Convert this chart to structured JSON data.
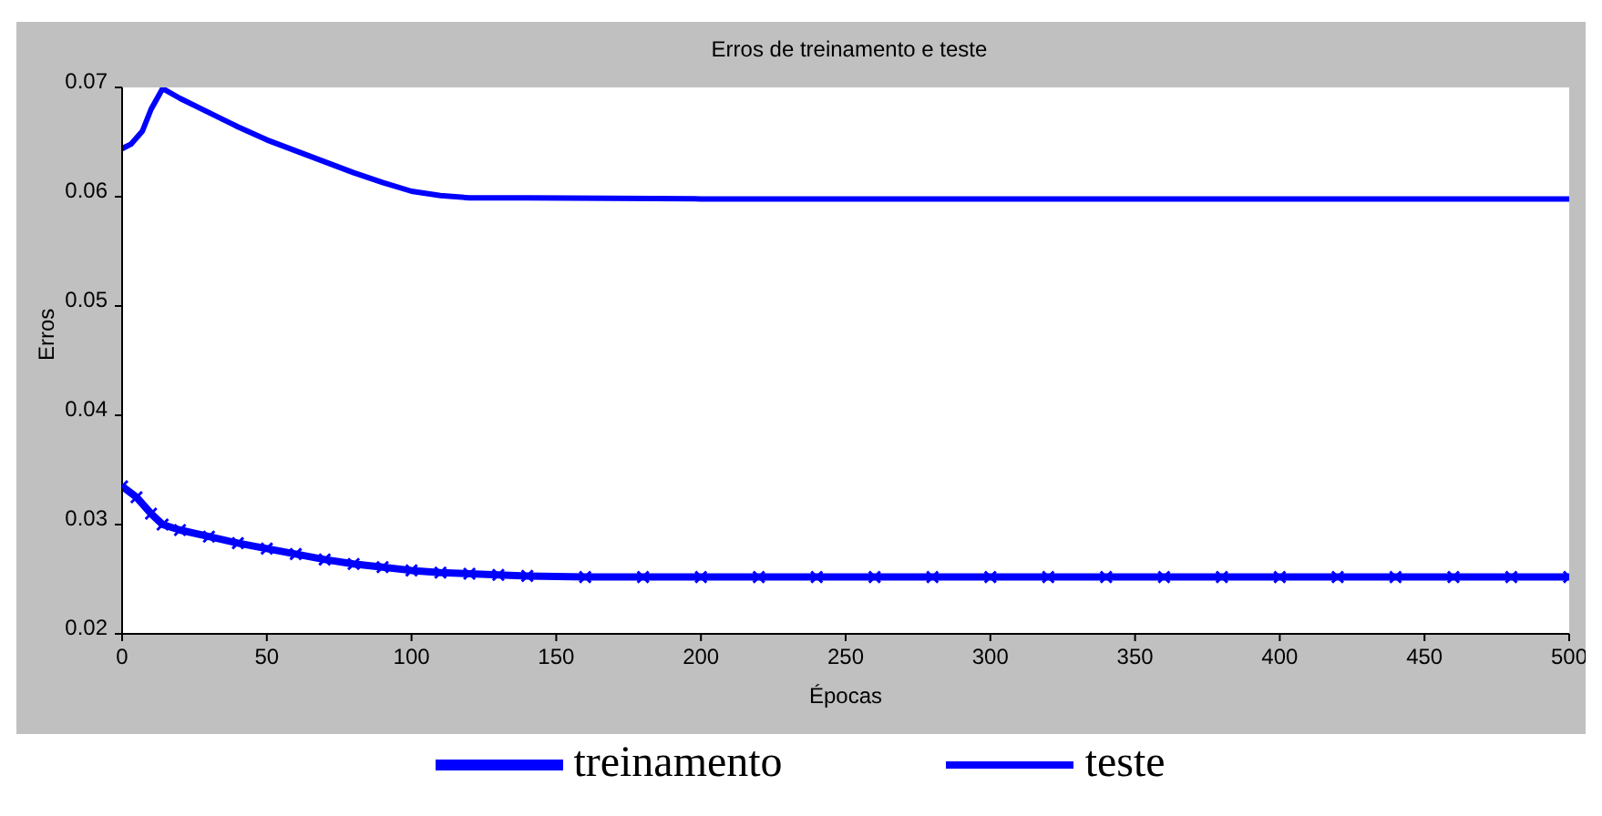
{
  "chart_data": {
    "type": "line",
    "title": "Erros de treinamento e teste",
    "xlabel": "Épocas",
    "ylabel": "Erros",
    "xlim": [
      0,
      500
    ],
    "xticks": [
      0,
      50,
      100,
      150,
      200,
      250,
      300,
      350,
      400,
      450,
      500
    ],
    "ylim": [
      0.02,
      0.07
    ],
    "yticks": [
      0.02,
      0.03,
      0.04,
      0.05,
      0.06,
      0.07
    ],
    "legend": "bottom",
    "grid": false,
    "series": [
      {
        "name": "treinamento",
        "color": "#0000ff",
        "marker": "cross",
        "x": [
          0,
          5,
          10,
          14,
          20,
          30,
          40,
          50,
          60,
          70,
          80,
          90,
          100,
          110,
          120,
          130,
          140,
          160,
          180,
          200,
          220,
          240,
          260,
          280,
          300,
          320,
          340,
          360,
          380,
          400,
          420,
          440,
          460,
          480,
          500
        ],
        "values": [
          0.0335,
          0.0325,
          0.031,
          0.03,
          0.0295,
          0.0289,
          0.0283,
          0.0278,
          0.0273,
          0.0268,
          0.0264,
          0.0261,
          0.0258,
          0.0256,
          0.0255,
          0.0254,
          0.0253,
          0.0252,
          0.0252,
          0.0252,
          0.0252,
          0.0252,
          0.0252,
          0.0252,
          0.0252,
          0.0252,
          0.0252,
          0.0252,
          0.0252,
          0.0252,
          0.0252,
          0.0252,
          0.0252,
          0.0252,
          0.0252
        ]
      },
      {
        "name": "teste",
        "color": "#0000ff",
        "marker": "none",
        "x": [
          0,
          3,
          7,
          10,
          14,
          20,
          30,
          40,
          50,
          60,
          70,
          80,
          90,
          100,
          110,
          120,
          140,
          200,
          500
        ],
        "values": [
          0.0644,
          0.0648,
          0.066,
          0.068,
          0.0699,
          0.069,
          0.0677,
          0.0664,
          0.0652,
          0.0642,
          0.0632,
          0.0622,
          0.0613,
          0.0605,
          0.0601,
          0.0599,
          0.0599,
          0.0598,
          0.0598
        ]
      }
    ]
  }
}
